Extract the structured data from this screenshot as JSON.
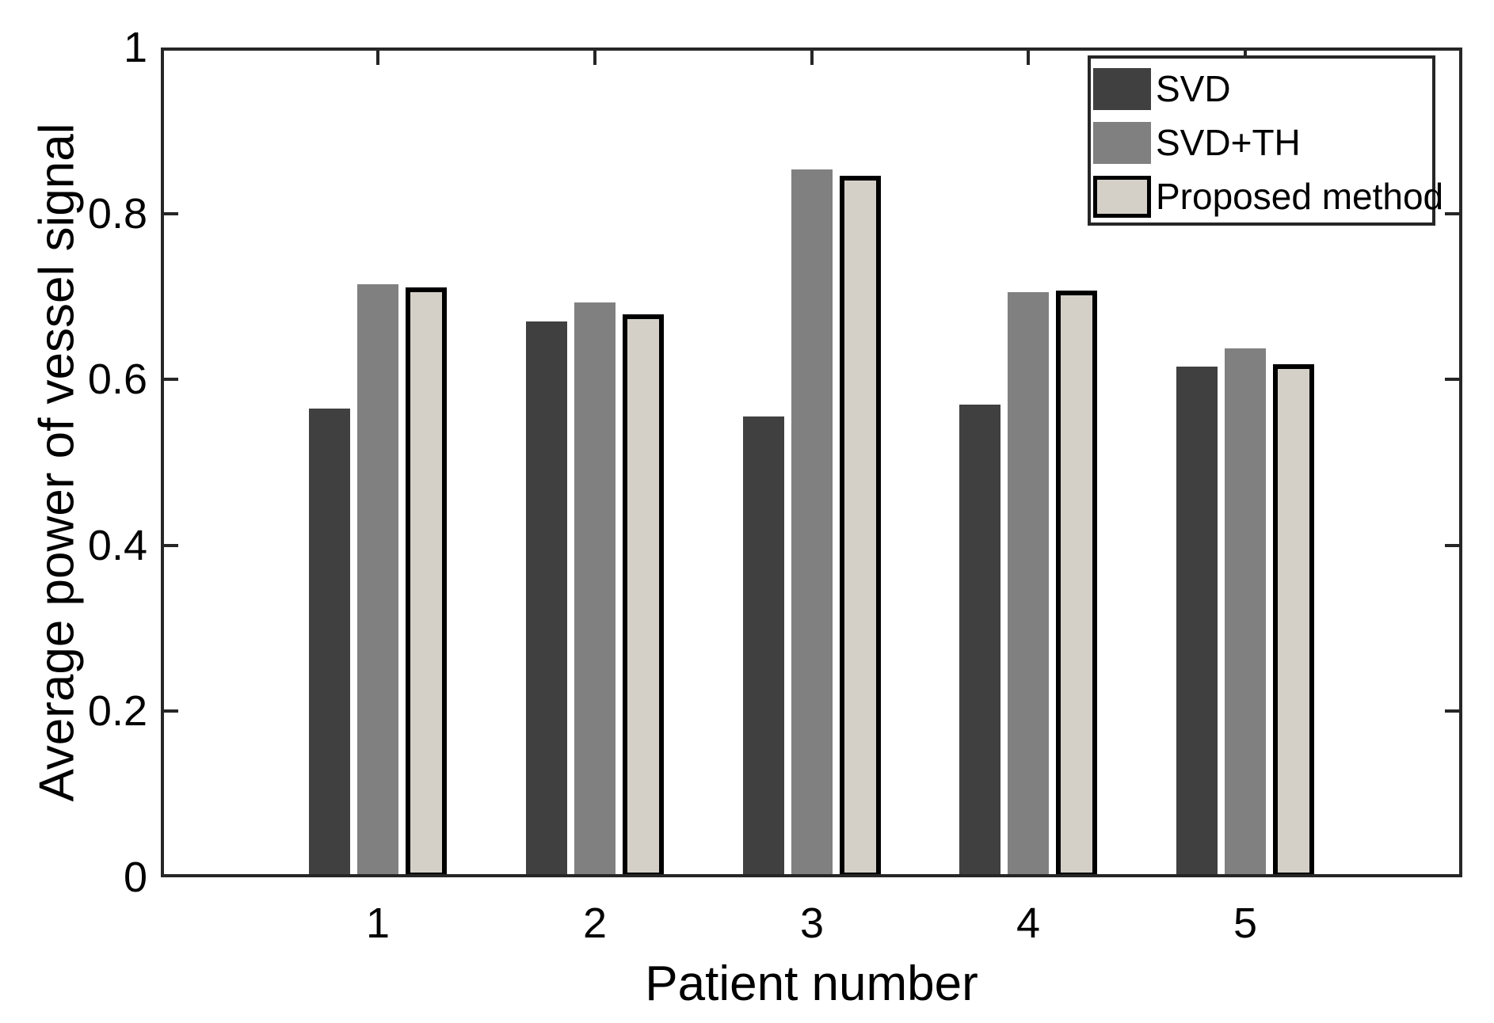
{
  "figure": {
    "background": "#ffffff",
    "axis_color": "#262626",
    "text_color": "#000000"
  },
  "chart_data": {
    "type": "bar",
    "title": "",
    "xlabel": "Patient number",
    "ylabel": "Average power of vessel signal",
    "categories": [
      "1",
      "2",
      "3",
      "4",
      "5"
    ],
    "series": [
      {
        "name": "SVD",
        "fill": "#404040",
        "edge": "#404040",
        "values": [
          0.565,
          0.67,
          0.555,
          0.57,
          0.615
        ]
      },
      {
        "name": "SVD+TH",
        "fill": "#808080",
        "edge": "#808080",
        "values": [
          0.715,
          0.693,
          0.853,
          0.705,
          0.637
        ]
      },
      {
        "name": "Proposed method",
        "fill": "#d4d0c8",
        "edge": "#000000",
        "values": [
          0.711,
          0.678,
          0.845,
          0.707,
          0.618
        ]
      }
    ],
    "ylim": [
      0,
      1
    ],
    "xlim": [
      0,
      6
    ],
    "yticks": [
      {
        "value": 0,
        "label": "0"
      },
      {
        "value": 0.2,
        "label": "0.2"
      },
      {
        "value": 0.4,
        "label": "0.4"
      },
      {
        "value": 0.6,
        "label": "0.6"
      },
      {
        "value": 0.8,
        "label": "0.8"
      },
      {
        "value": 1,
        "label": "1"
      }
    ],
    "grid": "off",
    "legend": {
      "position": "top-right",
      "entries": [
        "SVD",
        "SVD+TH",
        "Proposed method"
      ]
    }
  }
}
